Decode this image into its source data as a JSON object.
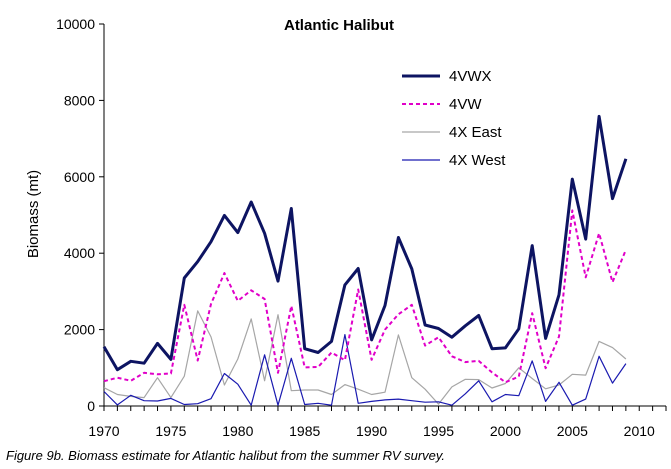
{
  "chart_data": {
    "type": "line",
    "title": "Atlantic Halibut",
    "xlabel": "",
    "ylabel": "Biomass (mt)",
    "xlim": [
      1970,
      2012
    ],
    "ylim": [
      0,
      10000
    ],
    "xticks": [
      1970,
      1975,
      1980,
      1985,
      1990,
      1995,
      2000,
      2005,
      2010
    ],
    "yticks": [
      0,
      2000,
      4000,
      6000,
      8000,
      10000
    ],
    "grid": false,
    "legend_position": "top-right",
    "x": [
      1970,
      1971,
      1972,
      1973,
      1974,
      1975,
      1976,
      1977,
      1978,
      1979,
      1980,
      1981,
      1982,
      1983,
      1984,
      1985,
      1986,
      1987,
      1988,
      1989,
      1990,
      1991,
      1992,
      1993,
      1994,
      1995,
      1996,
      1997,
      1998,
      1999,
      2000,
      2001,
      2002,
      2003,
      2004,
      2005,
      2006,
      2007,
      2008,
      2009
    ],
    "series": [
      {
        "name": "4VWX",
        "color": "#0d1462",
        "width": 3,
        "dash": "",
        "values": [
          1550,
          950,
          1170,
          1120,
          1640,
          1220,
          3350,
          3780,
          4300,
          4990,
          4540,
          5340,
          4520,
          3270,
          5170,
          1500,
          1400,
          1690,
          3170,
          3600,
          1730,
          2630,
          4410,
          3590,
          2120,
          2030,
          1800,
          2100,
          2370,
          1500,
          1520,
          2020,
          4200,
          1770,
          2910,
          5940,
          4370,
          7580,
          5430,
          6470
        ]
      },
      {
        "name": "4VW",
        "color": "#e000c8",
        "width": 2,
        "dash": "4,3",
        "values": [
          650,
          740,
          660,
          870,
          830,
          850,
          2650,
          1190,
          2670,
          3480,
          2750,
          3030,
          2800,
          870,
          2620,
          1010,
          1020,
          1400,
          1200,
          3050,
          1210,
          2000,
          2400,
          2650,
          1580,
          1800,
          1300,
          1150,
          1180,
          880,
          620,
          770,
          2430,
          990,
          1820,
          5120,
          3370,
          4520,
          3240,
          4090
        ]
      },
      {
        "name": "4X East",
        "color": "#a6a6a6",
        "width": 1.2,
        "dash": "",
        "values": [
          480,
          300,
          250,
          220,
          740,
          220,
          780,
          2490,
          1810,
          550,
          1230,
          2280,
          660,
          2390,
          400,
          420,
          420,
          300,
          560,
          440,
          300,
          360,
          1860,
          740,
          440,
          50,
          500,
          700,
          690,
          470,
          590,
          1000,
          720,
          450,
          550,
          830,
          810,
          1690,
          1530,
          1230
        ]
      },
      {
        "name": "4X West",
        "color": "#1a1ab0",
        "width": 1.2,
        "dash": "",
        "values": [
          380,
          30,
          280,
          140,
          130,
          200,
          40,
          60,
          190,
          850,
          570,
          20,
          1340,
          20,
          1250,
          40,
          70,
          20,
          1870,
          70,
          120,
          160,
          180,
          140,
          100,
          110,
          20,
          320,
          660,
          110,
          300,
          270,
          1180,
          120,
          620,
          20,
          180,
          1300,
          600,
          1110
        ]
      }
    ]
  },
  "caption": "Figure 9b. Biomass estimate for Atlantic halibut from the summer RV survey."
}
